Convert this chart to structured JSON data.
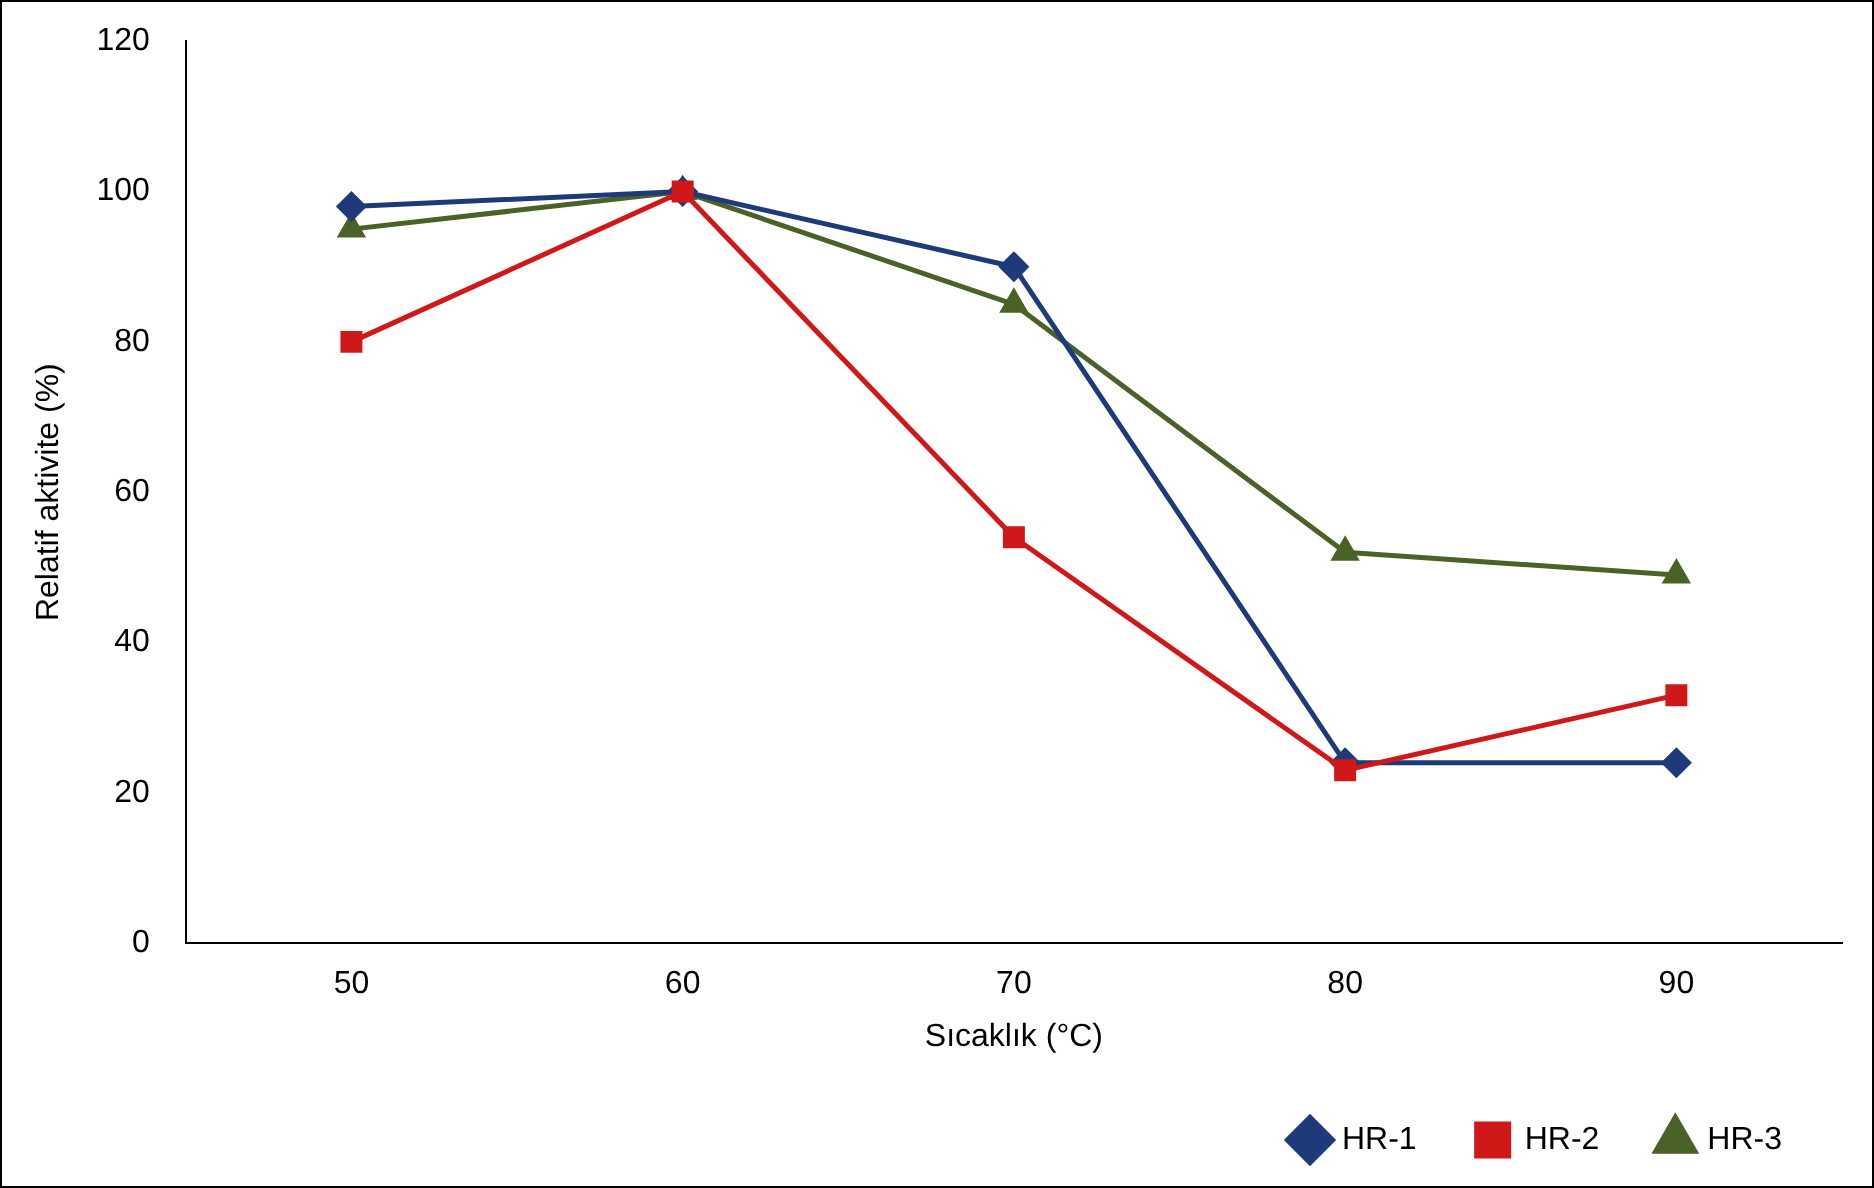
{
  "chart_data": {
    "type": "line",
    "xlabel": "Sıcaklık (°C)",
    "ylabel": "Relatif aktivite (%)",
    "categories": [
      "50",
      "60",
      "70",
      "80",
      "90"
    ],
    "ylim": [
      0,
      120
    ],
    "yticks": [
      0,
      20,
      40,
      60,
      80,
      100,
      120
    ],
    "grid": false,
    "legend": "bottom right",
    "line_style": "solid",
    "series": [
      {
        "name": "HR-1",
        "color": "#1f3a7a",
        "marker": "diamond",
        "values": [
          98,
          100,
          90,
          24,
          24
        ]
      },
      {
        "name": "HR-2",
        "color": "#d01818",
        "marker": "square",
        "values": [
          80,
          100,
          54,
          23,
          33
        ]
      },
      {
        "name": "HR-3",
        "color": "#4a6226",
        "marker": "triangle",
        "values": [
          95,
          100,
          85,
          52,
          49
        ]
      }
    ]
  }
}
